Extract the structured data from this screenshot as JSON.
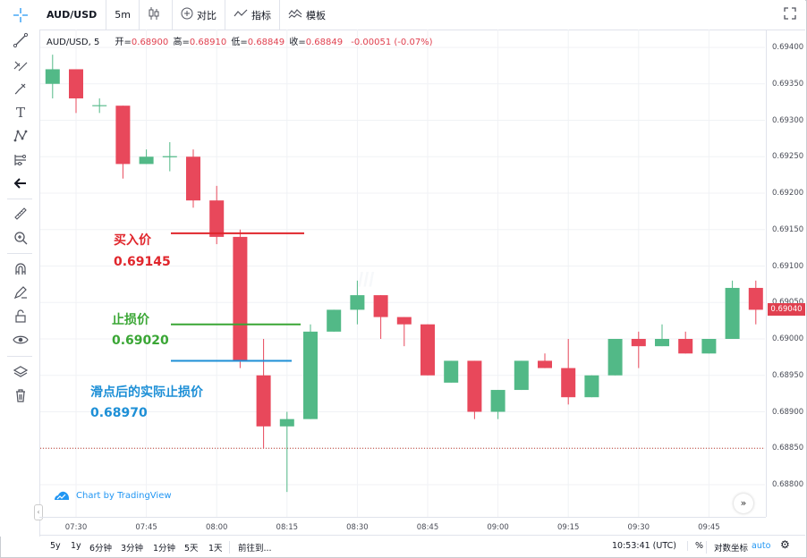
{
  "toolbar": {
    "symbol": "AUD/USD",
    "interval": "5m",
    "compare_label": "对比",
    "indicators_label": "指标",
    "templates_label": "模板"
  },
  "legend": {
    "symbol": "AUD/USD, 5",
    "open_label": "开=",
    "open": "0.68900",
    "high_label": "高=",
    "high": "0.68910",
    "low_label": "低=",
    "low": "0.68849",
    "close_label": "收=",
    "close": "0.68849",
    "change": "-0.00051 (-0.07%)"
  },
  "annotations": {
    "buy_label": "买入价",
    "buy_value": "0.69145",
    "stop_label": "止损价",
    "stop_value": "0.69020",
    "slip_label": "滑点后的实际止损价",
    "slip_value": "0.68970"
  },
  "credit": "Chart by TradingView",
  "bottombar": {
    "ranges": [
      "5y",
      "1y",
      "6分钟",
      "3分钟",
      "1分钟",
      "5天",
      "1天"
    ],
    "goto": "前往到...",
    "time": "10:53:41 (UTC)",
    "percent": "%",
    "log": "对数坐标",
    "auto": "auto"
  },
  "colors": {
    "up": "#52b987",
    "down": "#e8485b",
    "buy_line": "#e0262c",
    "stop_line": "#3aa635",
    "slip_line": "#1d8fd6",
    "accent": "#2196f3"
  },
  "chart_data": {
    "type": "candlestick",
    "x_ticks": [
      "07:30",
      "07:45",
      "08:00",
      "08:15",
      "08:30",
      "08:45",
      "09:00",
      "09:15",
      "09:30",
      "09:45"
    ],
    "y_ticks": [
      "0.69400",
      "0.69350",
      "0.69300",
      "0.69250",
      "0.69200",
      "0.69150",
      "0.69100",
      "0.69050",
      "0.69000",
      "0.68950",
      "0.68900",
      "0.68850",
      "0.68800"
    ],
    "ylim": [
      0.6878,
      0.6943
    ],
    "last_price_label": "0.69040",
    "last_price": 0.6904,
    "dotted_level": 0.6885,
    "candles": [
      {
        "t": "07:25",
        "o": 0.6935,
        "h": 0.6939,
        "l": 0.6933,
        "c": 0.6937
      },
      {
        "t": "07:30",
        "o": 0.6937,
        "h": 0.6937,
        "l": 0.6931,
        "c": 0.6933
      },
      {
        "t": "07:35",
        "o": 0.6932,
        "h": 0.6933,
        "l": 0.6931,
        "c": 0.6932
      },
      {
        "t": "07:40",
        "o": 0.6932,
        "h": 0.6932,
        "l": 0.6922,
        "c": 0.6924
      },
      {
        "t": "07:45",
        "o": 0.6924,
        "h": 0.6926,
        "l": 0.6924,
        "c": 0.6925
      },
      {
        "t": "07:50",
        "o": 0.6925,
        "h": 0.6927,
        "l": 0.6923,
        "c": 0.6925
      },
      {
        "t": "07:55",
        "o": 0.6925,
        "h": 0.6926,
        "l": 0.6918,
        "c": 0.6919
      },
      {
        "t": "08:00",
        "o": 0.6919,
        "h": 0.6921,
        "l": 0.6913,
        "c": 0.6914
      },
      {
        "t": "08:05",
        "o": 0.6914,
        "h": 0.6915,
        "l": 0.6896,
        "c": 0.6897
      },
      {
        "t": "08:10",
        "o": 0.6895,
        "h": 0.69,
        "l": 0.6885,
        "c": 0.6888
      },
      {
        "t": "08:15",
        "o": 0.6888,
        "h": 0.689,
        "l": 0.6879,
        "c": 0.6889
      },
      {
        "t": "08:20",
        "o": 0.6889,
        "h": 0.6902,
        "l": 0.6889,
        "c": 0.6901
      },
      {
        "t": "08:25",
        "o": 0.6901,
        "h": 0.6904,
        "l": 0.6901,
        "c": 0.6904
      },
      {
        "t": "08:30",
        "o": 0.6904,
        "h": 0.6908,
        "l": 0.6902,
        "c": 0.6906
      },
      {
        "t": "08:35",
        "o": 0.6906,
        "h": 0.6906,
        "l": 0.69,
        "c": 0.6903
      },
      {
        "t": "08:40",
        "o": 0.6903,
        "h": 0.6903,
        "l": 0.6899,
        "c": 0.6902
      },
      {
        "t": "08:45",
        "o": 0.6902,
        "h": 0.6902,
        "l": 0.6895,
        "c": 0.6895
      },
      {
        "t": "08:50",
        "o": 0.6894,
        "h": 0.6897,
        "l": 0.6894,
        "c": 0.6897
      },
      {
        "t": "08:55",
        "o": 0.6897,
        "h": 0.6897,
        "l": 0.6889,
        "c": 0.689
      },
      {
        "t": "09:00",
        "o": 0.689,
        "h": 0.6893,
        "l": 0.6889,
        "c": 0.6893
      },
      {
        "t": "09:05",
        "o": 0.6893,
        "h": 0.6897,
        "l": 0.6893,
        "c": 0.6897
      },
      {
        "t": "09:10",
        "o": 0.6897,
        "h": 0.6898,
        "l": 0.6896,
        "c": 0.6896
      },
      {
        "t": "09:15",
        "o": 0.6896,
        "h": 0.69,
        "l": 0.6891,
        "c": 0.6892
      },
      {
        "t": "09:20",
        "o": 0.6892,
        "h": 0.6895,
        "l": 0.6892,
        "c": 0.6895
      },
      {
        "t": "09:25",
        "o": 0.6895,
        "h": 0.69,
        "l": 0.6895,
        "c": 0.69
      },
      {
        "t": "09:30",
        "o": 0.69,
        "h": 0.6901,
        "l": 0.6896,
        "c": 0.6899
      },
      {
        "t": "09:35",
        "o": 0.6899,
        "h": 0.6902,
        "l": 0.6899,
        "c": 0.69
      },
      {
        "t": "09:40",
        "o": 0.69,
        "h": 0.6901,
        "l": 0.6898,
        "c": 0.6898
      },
      {
        "t": "09:45",
        "o": 0.6898,
        "h": 0.69,
        "l": 0.6898,
        "c": 0.69
      },
      {
        "t": "09:50",
        "o": 0.69,
        "h": 0.6908,
        "l": 0.69,
        "c": 0.6907
      },
      {
        "t": "09:55",
        "o": 0.6907,
        "h": 0.6908,
        "l": 0.6902,
        "c": 0.6904
      }
    ],
    "levels": [
      {
        "name": "买入价",
        "value": 0.69145,
        "color": "#e0262c"
      },
      {
        "name": "止损价",
        "value": 0.6902,
        "color": "#3aa635"
      },
      {
        "name": "滑点后的实际止损价",
        "value": 0.6897,
        "color": "#1d8fd6"
      }
    ]
  }
}
